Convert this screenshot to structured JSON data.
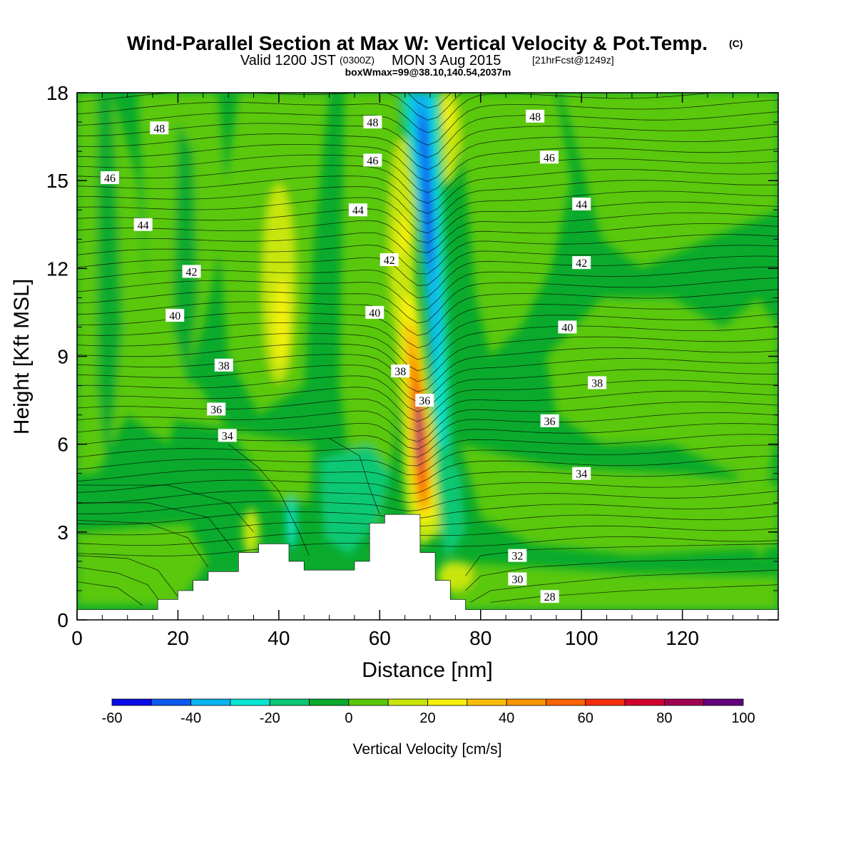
{
  "title": {
    "main": "Wind-Parallel Section at Max W: Vertical Velocity & Pot.Temp.",
    "copyright": "(C)",
    "valid_prefix": "Valid 1200 JST",
    "valid_utc": "(0300Z)",
    "valid_date": "MON 3 Aug 2015",
    "forecast": "[21hrFcst@1249z]",
    "box_info": "boxWmax=99@38.10,140.54,2037m"
  },
  "chart_data": {
    "type": "heatmap",
    "xlabel": "Distance [nm]",
    "ylabel": "Height [Kft MSL]",
    "xlim": [
      0,
      139
    ],
    "ylim": [
      0,
      18
    ],
    "x_ticks": [
      0,
      20,
      40,
      60,
      80,
      100,
      120
    ],
    "x_tick_labels": [
      "0",
      "20",
      "40",
      "60",
      "80",
      "100",
      "120"
    ],
    "y_ticks": [
      0,
      3,
      6,
      9,
      12,
      15,
      18
    ],
    "y_tick_labels": [
      "0",
      "3",
      "6",
      "9",
      "12",
      "15",
      "18"
    ],
    "colorbar": {
      "title": "Vertical Velocity [cm/s]",
      "levels": [
        -60,
        -50,
        -40,
        -30,
        -20,
        -10,
        0,
        10,
        20,
        30,
        40,
        50,
        60,
        70,
        80,
        90,
        100
      ],
      "labels": [
        "-60",
        "-40",
        "-20",
        "0",
        "20",
        "40",
        "60",
        "80",
        "100"
      ],
      "label_values": [
        -60,
        -40,
        -20,
        0,
        20,
        40,
        60,
        80,
        100
      ],
      "colors": [
        "#0a0ae8",
        "#0a5af0",
        "#0ab4f0",
        "#0ae6d2",
        "#0ac873",
        "#0aaa2d",
        "#5ac80a",
        "#c8e60a",
        "#f5f00a",
        "#fabe0a",
        "#fa9600",
        "#fa6400",
        "#f52d0a",
        "#d2002d",
        "#a00050",
        "#64007d"
      ]
    },
    "terrain": [
      [
        0,
        0.35
      ],
      [
        16,
        0.35
      ],
      [
        16,
        0.7
      ],
      [
        20,
        0.7
      ],
      [
        20,
        1.0
      ],
      [
        23,
        1.0
      ],
      [
        23,
        1.35
      ],
      [
        26,
        1.35
      ],
      [
        26,
        1.65
      ],
      [
        32,
        1.65
      ],
      [
        32,
        2.3
      ],
      [
        36,
        2.3
      ],
      [
        36,
        2.6
      ],
      [
        42,
        2.6
      ],
      [
        42,
        2.0
      ],
      [
        45,
        2.0
      ],
      [
        45,
        1.7
      ],
      [
        55,
        1.7
      ],
      [
        55,
        2.0
      ],
      [
        58,
        2.0
      ],
      [
        58,
        3.3
      ],
      [
        61,
        3.3
      ],
      [
        61,
        3.6
      ],
      [
        68,
        3.6
      ],
      [
        68,
        2.3
      ],
      [
        71,
        2.3
      ],
      [
        71,
        1.35
      ],
      [
        74,
        1.35
      ],
      [
        74,
        0.7
      ],
      [
        77,
        0.7
      ],
      [
        77,
        0.35
      ],
      [
        139,
        0.35
      ]
    ],
    "contour_labels": [
      {
        "text": "48",
        "x": 16.3,
        "y": 16.8
      },
      {
        "text": "48",
        "x": 58.6,
        "y": 17.0
      },
      {
        "text": "48",
        "x": 90.8,
        "y": 17.2
      },
      {
        "text": "46",
        "x": 6.5,
        "y": 15.1
      },
      {
        "text": "46",
        "x": 58.6,
        "y": 15.7
      },
      {
        "text": "46",
        "x": 93.6,
        "y": 15.8
      },
      {
        "text": "44",
        "x": 13.1,
        "y": 13.5
      },
      {
        "text": "44",
        "x": 55.7,
        "y": 14.0
      },
      {
        "text": "44",
        "x": 100.0,
        "y": 14.2
      },
      {
        "text": "42",
        "x": 22.7,
        "y": 11.9
      },
      {
        "text": "42",
        "x": 61.9,
        "y": 12.3
      },
      {
        "text": "42",
        "x": 100.0,
        "y": 12.2
      },
      {
        "text": "40",
        "x": 19.4,
        "y": 10.4
      },
      {
        "text": "40",
        "x": 59.0,
        "y": 10.5
      },
      {
        "text": "40",
        "x": 97.2,
        "y": 10.0
      },
      {
        "text": "38",
        "x": 29.1,
        "y": 8.7
      },
      {
        "text": "38",
        "x": 64.1,
        "y": 8.5
      },
      {
        "text": "38",
        "x": 103.1,
        "y": 8.1
      },
      {
        "text": "36",
        "x": 27.6,
        "y": 7.2
      },
      {
        "text": "36",
        "x": 68.9,
        "y": 7.5
      },
      {
        "text": "36",
        "x": 93.7,
        "y": 6.8
      },
      {
        "text": "34",
        "x": 29.8,
        "y": 6.3
      },
      {
        "text": "34",
        "x": 100.0,
        "y": 5.0
      },
      {
        "text": "32",
        "x": 87.3,
        "y": 2.2
      },
      {
        "text": "30",
        "x": 87.3,
        "y": 1.4
      },
      {
        "text": "28",
        "x": 93.7,
        "y": 0.8
      }
    ]
  }
}
